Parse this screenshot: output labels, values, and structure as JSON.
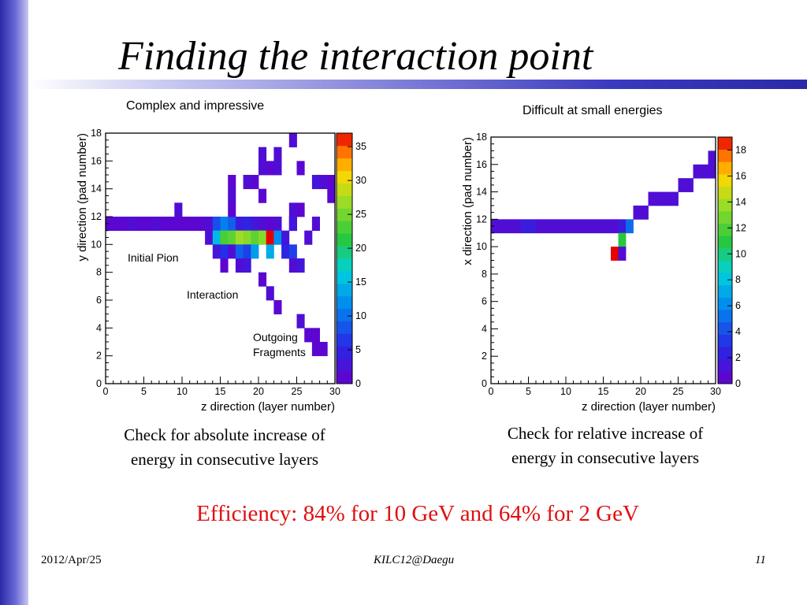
{
  "slide": {
    "title": "Finding the interaction point",
    "left_subtitle": "Complex and impressive",
    "right_subtitle": "Difficult at small energies",
    "left_caption_line1": "Check for absolute increase of",
    "left_caption_line2": "energy in consecutive layers",
    "right_caption_line1": "Check for relative increase of",
    "right_caption_line2": "energy in consecutive layers",
    "efficiency": "Efficiency: 84% for 10 GeV and 64% for 2 GeV",
    "footer_date": "2012/Apr/25",
    "footer_event": "KILC12@Daegu",
    "footer_page": "11",
    "accent_color": "#2a2aa8",
    "efficiency_color": "#e01010"
  },
  "chart_data": [
    {
      "type": "heatmap",
      "xlabel": "z direction (layer number)",
      "ylabel": "y direction (pad number)",
      "xlim": [
        0,
        30
      ],
      "ylim": [
        0,
        18
      ],
      "x_ticks": [
        0,
        5,
        10,
        15,
        20,
        25,
        30
      ],
      "y_ticks": [
        0,
        2,
        4,
        6,
        8,
        10,
        12,
        14,
        16,
        18
      ],
      "zlim": [
        0,
        37
      ],
      "colorbar_ticks": [
        0,
        5,
        10,
        15,
        20,
        25,
        30,
        35
      ],
      "annotations": [
        "Initial Pion",
        "Interaction",
        "Outgoing",
        "Fragments"
      ],
      "cells": [
        [
          0,
          11,
          1
        ],
        [
          1,
          11,
          1
        ],
        [
          2,
          11,
          1
        ],
        [
          3,
          11,
          2
        ],
        [
          4,
          11,
          1
        ],
        [
          5,
          11,
          1
        ],
        [
          6,
          11,
          2
        ],
        [
          7,
          11,
          1
        ],
        [
          8,
          11,
          1
        ],
        [
          9,
          11,
          1
        ],
        [
          10,
          11,
          1
        ],
        [
          11,
          11,
          1
        ],
        [
          12,
          11,
          1
        ],
        [
          13,
          11,
          2
        ],
        [
          14,
          11,
          8
        ],
        [
          15,
          11,
          11
        ],
        [
          16,
          11,
          9
        ],
        [
          17,
          11,
          4
        ],
        [
          18,
          11,
          5
        ],
        [
          19,
          11,
          3
        ],
        [
          20,
          11,
          2
        ],
        [
          21,
          11,
          1
        ],
        [
          22,
          11,
          2
        ],
        [
          24,
          11,
          1
        ],
        [
          27,
          11,
          2
        ],
        [
          9,
          12,
          2
        ],
        [
          16,
          12,
          1
        ],
        [
          13,
          10,
          2
        ],
        [
          14,
          10,
          15
        ],
        [
          15,
          10,
          23
        ],
        [
          16,
          10,
          24
        ],
        [
          17,
          10,
          27
        ],
        [
          18,
          10,
          26
        ],
        [
          19,
          10,
          24
        ],
        [
          20,
          10,
          26
        ],
        [
          21,
          10,
          37
        ],
        [
          22,
          10,
          12
        ],
        [
          23,
          10,
          3
        ],
        [
          26,
          10,
          2
        ],
        [
          14,
          9,
          3
        ],
        [
          15,
          9,
          6
        ],
        [
          16,
          9,
          2
        ],
        [
          17,
          9,
          9
        ],
        [
          18,
          9,
          7
        ],
        [
          19,
          9,
          13
        ],
        [
          21,
          9,
          14
        ],
        [
          23,
          9,
          5
        ],
        [
          24,
          9,
          7
        ],
        [
          15,
          8,
          1
        ],
        [
          17,
          8,
          2
        ],
        [
          18,
          8,
          3
        ],
        [
          24,
          8,
          2
        ],
        [
          25,
          8,
          3
        ],
        [
          20,
          7,
          1
        ],
        [
          21,
          6,
          2
        ],
        [
          22,
          5,
          1
        ],
        [
          25,
          4,
          2
        ],
        [
          26,
          3,
          1
        ],
        [
          27,
          3,
          1
        ],
        [
          27,
          2,
          1
        ],
        [
          28,
          2,
          1
        ],
        [
          20,
          16,
          2
        ],
        [
          22,
          16,
          2
        ],
        [
          24,
          17,
          2
        ],
        [
          20,
          15,
          2
        ],
        [
          21,
          15,
          1
        ],
        [
          22,
          15,
          2
        ],
        [
          25,
          15,
          1
        ],
        [
          16,
          14,
          1
        ],
        [
          18,
          14,
          2
        ],
        [
          19,
          14,
          1
        ],
        [
          27,
          14,
          3
        ],
        [
          28,
          14,
          2
        ],
        [
          29,
          14,
          1
        ],
        [
          16,
          13,
          2
        ],
        [
          20,
          13,
          1
        ],
        [
          29,
          13,
          1
        ],
        [
          24,
          12,
          2
        ],
        [
          25,
          12,
          1
        ],
        [
          24,
          11,
          3
        ]
      ]
    },
    {
      "type": "heatmap",
      "xlabel": "z direction (layer number)",
      "ylabel": "x direction (pad number)",
      "xlim": [
        0,
        30
      ],
      "ylim": [
        0,
        18
      ],
      "x_ticks": [
        0,
        5,
        10,
        15,
        20,
        25,
        30
      ],
      "y_ticks": [
        0,
        2,
        4,
        6,
        8,
        10,
        12,
        14,
        16,
        18
      ],
      "zlim": [
        0,
        19
      ],
      "colorbar_ticks": [
        0,
        2,
        4,
        6,
        8,
        10,
        12,
        14,
        16,
        18
      ],
      "cells": [
        [
          0,
          11,
          1
        ],
        [
          1,
          11,
          1
        ],
        [
          2,
          11,
          1
        ],
        [
          3,
          11,
          1
        ],
        [
          4,
          11,
          2
        ],
        [
          5,
          11,
          2
        ],
        [
          6,
          11,
          1
        ],
        [
          7,
          11,
          1
        ],
        [
          8,
          11,
          1
        ],
        [
          9,
          11,
          1
        ],
        [
          10,
          11,
          1
        ],
        [
          11,
          11,
          1
        ],
        [
          12,
          11,
          1
        ],
        [
          13,
          11,
          1
        ],
        [
          14,
          11,
          1
        ],
        [
          15,
          11,
          1
        ],
        [
          16,
          11,
          1
        ],
        [
          17,
          11,
          2
        ],
        [
          18,
          11,
          5
        ],
        [
          17,
          10,
          11
        ],
        [
          16,
          9,
          19
        ],
        [
          17,
          9,
          1
        ],
        [
          19,
          12,
          1
        ],
        [
          20,
          12,
          1
        ],
        [
          21,
          13,
          1
        ],
        [
          22,
          13,
          1
        ],
        [
          23,
          13,
          1
        ],
        [
          24,
          13,
          1
        ],
        [
          25,
          14,
          1
        ],
        [
          26,
          14,
          1
        ],
        [
          27,
          15,
          1
        ],
        [
          28,
          15,
          1
        ],
        [
          29,
          15,
          1
        ],
        [
          29,
          16,
          1
        ]
      ]
    }
  ]
}
